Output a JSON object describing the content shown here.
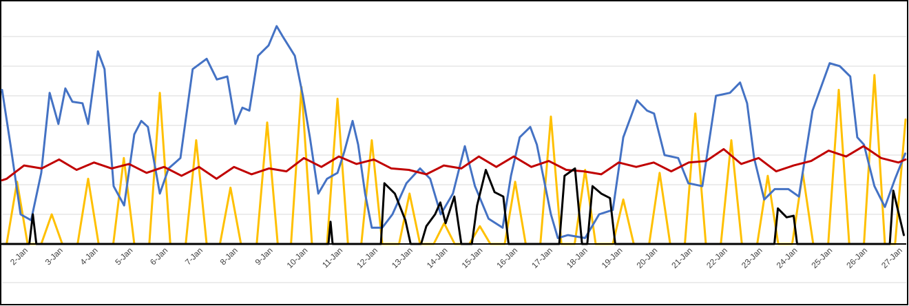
{
  "chart_data": {
    "type": "line",
    "grid": true,
    "xlim": [
      1.37,
      27.2
    ],
    "ylim": [
      0,
      8
    ],
    "yticks": [
      0,
      1,
      2,
      3,
      4,
      5,
      6,
      7
    ],
    "xticks": [
      {
        "value": 2,
        "label": "2-Jan"
      },
      {
        "value": 3,
        "label": "3-Jan"
      },
      {
        "value": 4,
        "label": "4-Jan"
      },
      {
        "value": 5,
        "label": "5-Jan"
      },
      {
        "value": 6,
        "label": "6-Jan"
      },
      {
        "value": 7,
        "label": "7-Jan"
      },
      {
        "value": 8,
        "label": "8-Jan"
      },
      {
        "value": 9,
        "label": "9-Jan"
      },
      {
        "value": 10,
        "label": "10-Jan"
      },
      {
        "value": 11,
        "label": "11-Jan"
      },
      {
        "value": 12,
        "label": "12-Jan"
      },
      {
        "value": 13,
        "label": "13-Jan"
      },
      {
        "value": 14,
        "label": "14-Jan"
      },
      {
        "value": 15,
        "label": "15-Jan"
      },
      {
        "value": 16,
        "label": "16-Jan"
      },
      {
        "value": 17,
        "label": "17-Jan"
      },
      {
        "value": 18,
        "label": "18-Jan"
      },
      {
        "value": 19,
        "label": "19-Jan"
      },
      {
        "value": 20,
        "label": "20-Jan"
      },
      {
        "value": 21,
        "label": "21-Jan"
      },
      {
        "value": 22,
        "label": "22-Jan"
      },
      {
        "value": 23,
        "label": "23-Jan"
      },
      {
        "value": 24,
        "label": "24-Jan"
      },
      {
        "value": 25,
        "label": "25-Jan"
      },
      {
        "value": 26,
        "label": "26-Jan"
      },
      {
        "value": 27,
        "label": "27-Jan"
      }
    ],
    "series": [
      {
        "color": "#ffc000",
        "x": [
          1.5,
          1.8,
          2.1,
          2.49,
          2.79,
          3.09,
          3.53,
          3.83,
          4.13,
          4.55,
          4.85,
          5.15,
          5.58,
          5.88,
          6.18,
          6.62,
          6.92,
          7.22,
          7.6,
          7.9,
          8.2,
          8.65,
          8.95,
          9.25,
          9.63,
          9.93,
          10.23,
          10.66,
          10.96,
          11.26,
          11.64,
          11.94,
          12.24,
          12.72,
          13.02,
          13.32,
          13.71,
          14.01,
          14.31,
          14.73,
          15.03,
          15.33,
          15.74,
          16.04,
          16.34,
          16.76,
          17.06,
          17.36,
          17.74,
          18.04,
          18.34,
          18.83,
          19.13,
          19.43,
          19.87,
          20.17,
          20.47,
          20.89,
          21.19,
          21.49,
          21.92,
          22.22,
          22.52,
          22.96,
          23.26,
          23.56,
          23.96,
          24.26,
          24.56,
          24.99,
          25.29,
          25.59,
          26.01,
          26.31,
          26.61,
          26.9,
          27.2
        ],
        "values": [
          0,
          2.1,
          0,
          0,
          1.0,
          0,
          0,
          2.2,
          0,
          0,
          2.9,
          0,
          0,
          5.1,
          0,
          0,
          3.5,
          0,
          0,
          1.9,
          0,
          0,
          4.1,
          0,
          0,
          5.3,
          0,
          0,
          4.9,
          0,
          0,
          3.5,
          0,
          0,
          1.7,
          0,
          0,
          0.7,
          0,
          0,
          0.6,
          0,
          0,
          2.1,
          0,
          0,
          4.3,
          0,
          0,
          2.5,
          0,
          0,
          1.5,
          0,
          0,
          2.4,
          0,
          0,
          4.4,
          0,
          0,
          3.5,
          0,
          0,
          2.3,
          0,
          0,
          2.4,
          0,
          0,
          5.2,
          0,
          0,
          5.7,
          0,
          0,
          4.2
        ]
      },
      {
        "color": "#4472c4",
        "x": [
          1.37,
          1.61,
          1.9,
          2.2,
          2.49,
          2.73,
          2.98,
          3.18,
          3.38,
          3.67,
          3.83,
          4.11,
          4.3,
          4.56,
          4.86,
          5.15,
          5.35,
          5.54,
          5.88,
          6.13,
          6.47,
          6.82,
          7.22,
          7.51,
          7.81,
          8.04,
          8.24,
          8.44,
          8.69,
          8.99,
          9.22,
          9.42,
          9.74,
          9.97,
          10.17,
          10.41,
          10.66,
          10.96,
          11.15,
          11.39,
          11.55,
          11.75,
          11.94,
          12.24,
          12.53,
          12.93,
          13.32,
          13.61,
          13.91,
          14.26,
          14.6,
          14.89,
          15.28,
          15.68,
          15.92,
          16.17,
          16.47,
          16.66,
          17.06,
          17.26,
          17.55,
          18.04,
          18.44,
          18.83,
          19.13,
          19.52,
          19.81,
          20.01,
          20.31,
          20.7,
          20.99,
          21.39,
          21.78,
          22.18,
          22.47,
          22.67,
          22.87,
          23.16,
          23.46,
          23.85,
          24.15,
          24.54,
          25.03,
          25.32,
          25.62,
          25.82,
          26.01,
          26.31,
          26.61,
          26.9,
          27.19
        ],
        "values": [
          5.2,
          3.35,
          1.0,
          0.8,
          2.4,
          5.1,
          4.05,
          5.25,
          4.8,
          4.75,
          4.05,
          6.5,
          5.9,
          1.95,
          1.3,
          3.7,
          4.15,
          3.95,
          1.7,
          2.55,
          2.9,
          5.9,
          6.25,
          5.55,
          5.65,
          4.05,
          4.6,
          4.5,
          6.35,
          6.7,
          7.35,
          6.95,
          6.35,
          5.0,
          3.6,
          1.7,
          2.2,
          2.4,
          3.1,
          4.15,
          3.35,
          1.7,
          0.55,
          0.55,
          1.0,
          2.05,
          2.55,
          2.2,
          1.0,
          1.7,
          3.3,
          1.95,
          0.85,
          0.55,
          2.3,
          3.6,
          3.95,
          3.35,
          1.0,
          0.2,
          0.3,
          0.2,
          1.0,
          1.15,
          3.6,
          4.85,
          4.5,
          4.4,
          3.0,
          2.9,
          2.05,
          1.95,
          5.0,
          5.1,
          5.45,
          4.75,
          2.9,
          1.5,
          1.85,
          1.85,
          1.6,
          4.5,
          6.1,
          6.0,
          5.65,
          3.6,
          3.35,
          1.95,
          1.25,
          2.2,
          3.05
        ]
      },
      {
        "color": "#c00000",
        "x": [
          1.37,
          1.5,
          2.0,
          2.5,
          3.0,
          3.5,
          4.0,
          4.5,
          5.0,
          5.5,
          6.0,
          6.5,
          7.0,
          7.5,
          8.0,
          8.5,
          9.0,
          9.5,
          10.0,
          10.5,
          11.0,
          11.5,
          12.0,
          12.5,
          13.0,
          13.5,
          14.0,
          14.5,
          15.0,
          15.5,
          16.0,
          16.5,
          17.0,
          17.5,
          18.0,
          18.5,
          19.0,
          19.5,
          20.0,
          20.5,
          21.0,
          21.5,
          22.0,
          22.5,
          23.0,
          23.5,
          24.0,
          24.5,
          25.0,
          25.5,
          26.0,
          26.5,
          27.0,
          27.2
        ],
        "values": [
          2.15,
          2.2,
          2.65,
          2.55,
          2.85,
          2.5,
          2.75,
          2.55,
          2.7,
          2.4,
          2.6,
          2.3,
          2.6,
          2.2,
          2.6,
          2.35,
          2.55,
          2.45,
          2.9,
          2.6,
          2.95,
          2.7,
          2.85,
          2.55,
          2.5,
          2.35,
          2.65,
          2.55,
          2.95,
          2.6,
          2.95,
          2.6,
          2.8,
          2.5,
          2.45,
          2.35,
          2.75,
          2.6,
          2.75,
          2.45,
          2.75,
          2.8,
          3.2,
          2.7,
          2.9,
          2.45,
          2.65,
          2.8,
          3.15,
          2.95,
          3.3,
          2.9,
          2.75,
          2.85
        ]
      },
      {
        "color": "#000000",
        "x": [
          1.37,
          2.15,
          2.25,
          2.35,
          10.7,
          10.76,
          10.82,
          12.2,
          12.3,
          12.6,
          12.9,
          13.05,
          13.35,
          13.5,
          13.75,
          13.9,
          14.05,
          14.3,
          14.5,
          14.8,
          14.95,
          15.2,
          15.45,
          15.7,
          15.85,
          17.3,
          17.45,
          17.75,
          17.95,
          18.1,
          18.25,
          18.5,
          18.75,
          18.9,
          23.45,
          23.55,
          23.8,
          24.0,
          24.1,
          26.75,
          26.85,
          27.15
        ],
        "values": [
          0,
          0,
          1.0,
          0,
          0,
          0.75,
          0,
          0,
          2.05,
          1.7,
          0.8,
          0,
          0,
          0.6,
          1.0,
          1.4,
          0.7,
          1.6,
          0,
          0,
          1.3,
          2.5,
          1.75,
          1.6,
          0,
          0,
          2.3,
          2.55,
          0,
          0,
          1.95,
          1.7,
          1.55,
          0,
          0,
          1.2,
          0.9,
          0.95,
          0,
          0,
          1.8,
          0.3
        ]
      }
    ]
  }
}
